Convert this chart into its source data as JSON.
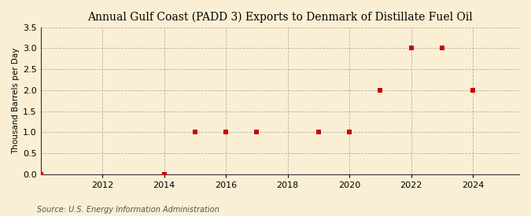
{
  "title": "Annual Gulf Coast (PADD 3) Exports to Denmark of Distillate Fuel Oil",
  "ylabel": "Thousand Barrels per Day",
  "source_text": "Source: U.S. Energy Information Administration",
  "x_data": [
    2010,
    2014,
    2015,
    2016,
    2017,
    2019,
    2020,
    2021,
    2022,
    2023,
    2024
  ],
  "y_data": [
    0.0,
    0.0,
    1.0,
    1.0,
    1.0,
    1.0,
    1.0,
    2.0,
    3.0,
    3.0,
    2.0
  ],
  "marker_color": "#cc0000",
  "marker_size": 4,
  "ylim": [
    0.0,
    3.5
  ],
  "yticks": [
    0.0,
    0.5,
    1.0,
    1.5,
    2.0,
    2.5,
    3.0,
    3.5
  ],
  "xlim": [
    2010.0,
    2025.5
  ],
  "xticks": [
    2012,
    2014,
    2016,
    2018,
    2020,
    2022,
    2024
  ],
  "grid_color": "#b0b0b0",
  "bg_color": "#faefd4",
  "title_fontsize": 10,
  "label_fontsize": 7.5,
  "tick_fontsize": 8,
  "source_fontsize": 7
}
